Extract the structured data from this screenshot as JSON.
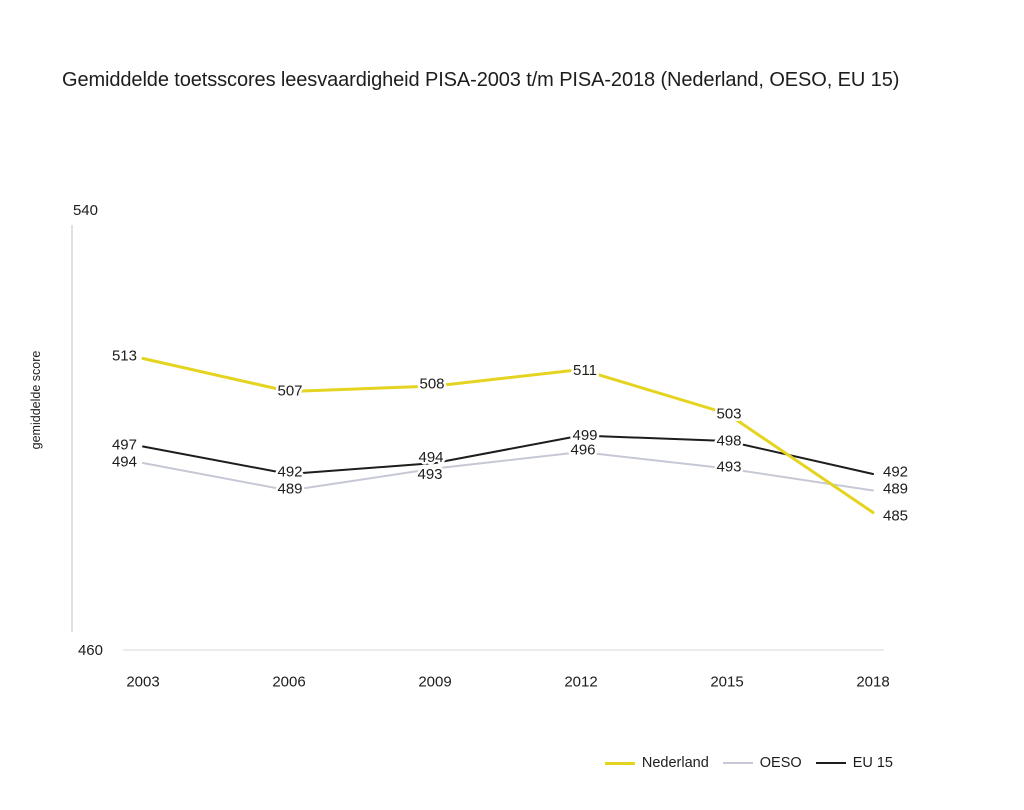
{
  "page": {
    "background": "#ffffff",
    "text_color": "#1d1d1b"
  },
  "chart_data": {
    "type": "line",
    "title": "Gemiddelde toetsscores leesvaardigheid PISA-2003 t/m PISA-2018 (Nederland, OESO, EU 15)",
    "xlabel": "",
    "ylabel": "gemiddelde score",
    "ylim": [
      460,
      540
    ],
    "ytick_labels": [
      "540",
      "460"
    ],
    "categories": [
      "2003",
      "2006",
      "2009",
      "2012",
      "2015",
      "2018"
    ],
    "series": [
      {
        "name": "Nederland",
        "color": "#e5d41f",
        "width": 3,
        "values": [
          513,
          507,
          508,
          511,
          503,
          485
        ]
      },
      {
        "name": "OESO",
        "color": "#c6c9d5",
        "width": 2,
        "values": [
          494,
          489,
          493,
          496,
          493,
          489
        ]
      },
      {
        "name": "EU 15",
        "color": "#1d1d1b",
        "width": 2,
        "values": [
          497,
          492,
          494,
          499,
          498,
          492
        ]
      }
    ],
    "grid": false,
    "legend_position": "bottom-right",
    "axis_color": "#c3c3c3",
    "baseline_color": "#d8d8d8"
  }
}
